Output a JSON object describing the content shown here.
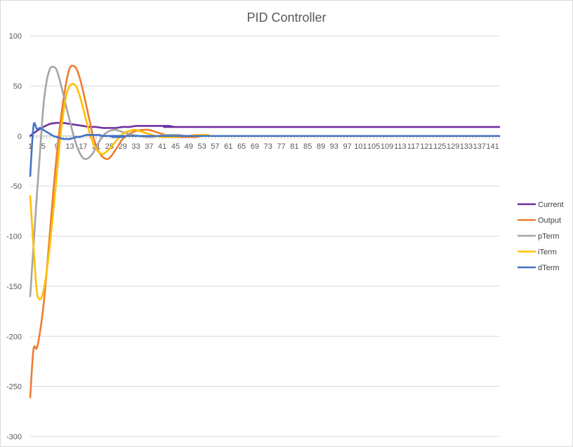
{
  "chart_data": {
    "type": "line",
    "title": "PID Controller",
    "xlabel": "",
    "ylabel": "",
    "ylim": [
      -300,
      100
    ],
    "y_ticks": [
      100,
      50,
      0,
      -50,
      -100,
      -150,
      -200,
      -250,
      -300
    ],
    "x_categories": "1..143 (every 4th labeled: 1, 5, 9, ..., 141)",
    "xlim": [
      1,
      143
    ],
    "x_tick_labels": [
      "1",
      "5",
      "9",
      "13",
      "17",
      "21",
      "25",
      "29",
      "33",
      "37",
      "41",
      "45",
      "49",
      "53",
      "57",
      "61",
      "65",
      "69",
      "73",
      "77",
      "81",
      "85",
      "89",
      "93",
      "97",
      "101",
      "105",
      "109",
      "113",
      "117",
      "121",
      "125",
      "129",
      "133",
      "137",
      "141"
    ],
    "grid": "horizontal",
    "legend_position": "right",
    "series": [
      {
        "name": "Current",
        "color": "#7030A0",
        "points": [
          [
            1,
            0
          ],
          [
            3,
            5
          ],
          [
            5,
            9
          ],
          [
            7,
            12
          ],
          [
            9,
            13
          ],
          [
            11,
            13
          ],
          [
            13,
            12
          ],
          [
            15,
            11
          ],
          [
            17,
            10
          ],
          [
            19,
            9
          ],
          [
            21,
            9
          ],
          [
            23,
            8
          ],
          [
            25,
            8
          ],
          [
            27,
            8
          ],
          [
            29,
            9
          ],
          [
            31,
            9
          ],
          [
            33,
            10
          ],
          [
            35,
            10
          ],
          [
            37,
            10
          ],
          [
            39,
            10
          ],
          [
            41,
            10
          ],
          [
            43,
            10
          ],
          [
            45,
            9
          ],
          [
            50,
            9
          ],
          [
            143,
            9
          ]
        ]
      },
      {
        "name": "Output",
        "color": "#ED7D31",
        "points": [
          [
            1,
            -261
          ],
          [
            2,
            -213
          ],
          [
            3,
            -212
          ],
          [
            4,
            -195
          ],
          [
            5,
            -170
          ],
          [
            6,
            -135
          ],
          [
            7,
            -95
          ],
          [
            8,
            -55
          ],
          [
            9,
            -20
          ],
          [
            10,
            10
          ],
          [
            11,
            35
          ],
          [
            12,
            55
          ],
          [
            13,
            68
          ],
          [
            14,
            70
          ],
          [
            15,
            67
          ],
          [
            16,
            58
          ],
          [
            17,
            45
          ],
          [
            18,
            30
          ],
          [
            19,
            15
          ],
          [
            20,
            0
          ],
          [
            21,
            -10
          ],
          [
            22,
            -17
          ],
          [
            23,
            -21
          ],
          [
            24,
            -23
          ],
          [
            25,
            -22
          ],
          [
            26,
            -18
          ],
          [
            27,
            -13
          ],
          [
            28,
            -8
          ],
          [
            29,
            -3
          ],
          [
            31,
            2
          ],
          [
            33,
            5
          ],
          [
            35,
            6
          ],
          [
            37,
            6
          ],
          [
            39,
            4
          ],
          [
            41,
            2
          ],
          [
            43,
            0
          ],
          [
            45,
            -1
          ],
          [
            47,
            -1
          ],
          [
            49,
            -1
          ],
          [
            51,
            -1
          ],
          [
            53,
            0
          ],
          [
            55,
            0
          ],
          [
            143,
            0
          ]
        ]
      },
      {
        "name": "pTerm",
        "color": "#A5A5A5",
        "points": [
          [
            1,
            -160
          ],
          [
            2,
            -110
          ],
          [
            3,
            -60
          ],
          [
            4,
            -15
          ],
          [
            5,
            30
          ],
          [
            6,
            55
          ],
          [
            7,
            67
          ],
          [
            8,
            69
          ],
          [
            9,
            66
          ],
          [
            10,
            55
          ],
          [
            11,
            42
          ],
          [
            12,
            28
          ],
          [
            13,
            15
          ],
          [
            14,
            2
          ],
          [
            15,
            -9
          ],
          [
            16,
            -17
          ],
          [
            17,
            -22
          ],
          [
            18,
            -23
          ],
          [
            19,
            -21
          ],
          [
            20,
            -17
          ],
          [
            21,
            -11
          ],
          [
            22,
            -5
          ],
          [
            23,
            0
          ],
          [
            24,
            3
          ],
          [
            25,
            5
          ],
          [
            26,
            6
          ],
          [
            27,
            6
          ],
          [
            28,
            5
          ],
          [
            30,
            3
          ],
          [
            32,
            1
          ],
          [
            34,
            0
          ],
          [
            36,
            -1
          ],
          [
            38,
            -1
          ],
          [
            40,
            0
          ],
          [
            42,
            1
          ],
          [
            44,
            1
          ],
          [
            46,
            1
          ],
          [
            48,
            0
          ],
          [
            50,
            0
          ],
          [
            143,
            0
          ]
        ]
      },
      {
        "name": "iTerm",
        "color": "#FFC000",
        "points": [
          [
            1,
            -60
          ],
          [
            2,
            -110
          ],
          [
            3,
            -155
          ],
          [
            4,
            -163
          ],
          [
            5,
            -155
          ],
          [
            6,
            -135
          ],
          [
            7,
            -108
          ],
          [
            8,
            -75
          ],
          [
            9,
            -40
          ],
          [
            10,
            -5
          ],
          [
            11,
            22
          ],
          [
            12,
            42
          ],
          [
            13,
            50
          ],
          [
            14,
            52
          ],
          [
            15,
            49
          ],
          [
            16,
            40
          ],
          [
            17,
            28
          ],
          [
            18,
            15
          ],
          [
            19,
            3
          ],
          [
            20,
            -7
          ],
          [
            21,
            -13
          ],
          [
            22,
            -17
          ],
          [
            23,
            -18
          ],
          [
            24,
            -16
          ],
          [
            25,
            -13
          ],
          [
            26,
            -9
          ],
          [
            27,
            -5
          ],
          [
            28,
            -1
          ],
          [
            29,
            2
          ],
          [
            30,
            4
          ],
          [
            31,
            5
          ],
          [
            32,
            6
          ],
          [
            33,
            6
          ],
          [
            34,
            5
          ],
          [
            35,
            4
          ],
          [
            36,
            3
          ],
          [
            37,
            2
          ],
          [
            38,
            1
          ],
          [
            39,
            0
          ],
          [
            41,
            -1
          ],
          [
            43,
            -1
          ],
          [
            45,
            -1
          ],
          [
            47,
            0
          ],
          [
            49,
            0
          ],
          [
            51,
            1
          ],
          [
            53,
            1
          ],
          [
            55,
            1
          ],
          [
            57,
            0
          ],
          [
            143,
            0
          ]
        ]
      },
      {
        "name": "dTerm",
        "color": "#4472C4",
        "points": [
          [
            1,
            -40
          ],
          [
            2,
            10
          ],
          [
            3,
            7
          ],
          [
            4,
            8
          ],
          [
            5,
            6
          ],
          [
            6,
            4
          ],
          [
            7,
            2
          ],
          [
            8,
            0
          ],
          [
            9,
            -1
          ],
          [
            10,
            -2
          ],
          [
            11,
            -3
          ],
          [
            12,
            -3
          ],
          [
            13,
            -3
          ],
          [
            14,
            -2
          ],
          [
            15,
            -1
          ],
          [
            16,
            -1
          ],
          [
            17,
            0
          ],
          [
            18,
            1
          ],
          [
            19,
            1
          ],
          [
            20,
            1
          ],
          [
            21,
            1
          ],
          [
            22,
            1
          ],
          [
            23,
            0
          ],
          [
            24,
            0
          ],
          [
            25,
            0
          ],
          [
            26,
            -1
          ],
          [
            27,
            -1
          ],
          [
            28,
            -1
          ],
          [
            29,
            -1
          ],
          [
            30,
            0
          ],
          [
            31,
            0
          ],
          [
            143,
            0
          ]
        ]
      }
    ]
  }
}
